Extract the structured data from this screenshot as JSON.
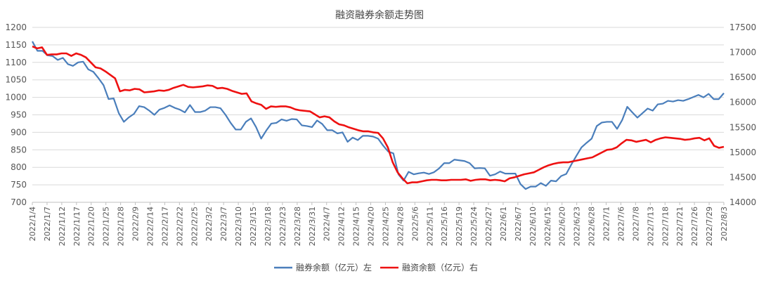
{
  "chart_data": {
    "type": "line",
    "title": "融资融券余额走势图",
    "grid": "horizontal",
    "legend_position": "bottom-center",
    "left_axis": {
      "ylim": [
        700,
        1200
      ],
      "ticks": [
        700,
        750,
        800,
        850,
        900,
        950,
        1000,
        1050,
        1100,
        1150,
        1200
      ]
    },
    "right_axis": {
      "ylim": [
        14000,
        17500
      ],
      "ticks": [
        14000,
        14500,
        15000,
        15500,
        16000,
        16500,
        17000,
        17500
      ]
    },
    "x_tick_labels": [
      "2022/1/4",
      "2022/1/7",
      "2022/1/12",
      "2022/1/17",
      "2022/1/20",
      "2022/1/25",
      "2022/1/28",
      "2022/2/9",
      "2022/2/14",
      "2022/2/17",
      "2022/2/22",
      "2022/2/25",
      "2022/3/2",
      "2022/3/7",
      "2022/3/10",
      "2022/3/15",
      "2022/3/18",
      "2022/3/23",
      "2022/3/28",
      "2022/3/31",
      "2022/4/7",
      "2022/4/12",
      "2022/4/15",
      "2022/4/20",
      "2022/4/25",
      "2022/4/28",
      "2022/5/6",
      "2022/5/11",
      "2022/5/16",
      "2022/5/19",
      "2022/5/24",
      "2022/5/27",
      "2022/6/1",
      "2022/6/7",
      "2022/6/10",
      "2022/6/15",
      "2022/6/20",
      "2022/6/23",
      "2022/6/28",
      "2022/7/1",
      "2022/7/6",
      "2022/7/8",
      "2022/7/13",
      "2022/7/18",
      "2022/7/21",
      "2022/7/26",
      "2022/7/29",
      "2022/8/3"
    ],
    "series": [
      {
        "name": "融券余额（亿元）左",
        "axis": "left",
        "color": "#4a7ebb",
        "values": [
          1160,
          1133,
          1133,
          1120,
          1118,
          1107,
          1113,
          1095,
          1090,
          1100,
          1102,
          1080,
          1073,
          1055,
          1035,
          995,
          997,
          955,
          930,
          943,
          953,
          975,
          972,
          962,
          950,
          965,
          970,
          977,
          970,
          965,
          957,
          978,
          958,
          958,
          962,
          972,
          972,
          969,
          950,
          927,
          908,
          908,
          930,
          940,
          915,
          882,
          905,
          925,
          927,
          937,
          933,
          938,
          937,
          920,
          918,
          915,
          934,
          924,
          906,
          906,
          897,
          900,
          873,
          885,
          878,
          890,
          890,
          888,
          882,
          862,
          845,
          840,
          780,
          762,
          787,
          780,
          783,
          785,
          781,
          786,
          797,
          812,
          812,
          822,
          820,
          818,
          812,
          797,
          798,
          797,
          776,
          780,
          788,
          782,
          782,
          782,
          752,
          738,
          745,
          745,
          755,
          747,
          762,
          760,
          775,
          781,
          808,
          833,
          857,
          870,
          882,
          918,
          928,
          930,
          930,
          910,
          935,
          973,
          957,
          942,
          955,
          968,
          962,
          980,
          982,
          990,
          988,
          992,
          990,
          995,
          1001,
          1007,
          1000,
          1010,
          995,
          995,
          1012
        ]
      },
      {
        "name": "融资余额（亿元）右",
        "axis": "right",
        "color": "#ee1111",
        "values": [
          17120,
          17080,
          17100,
          16950,
          16960,
          16960,
          16980,
          16980,
          16930,
          16980,
          16950,
          16900,
          16800,
          16700,
          16680,
          16620,
          16550,
          16480,
          16220,
          16250,
          16240,
          16270,
          16260,
          16200,
          16210,
          16220,
          16240,
          16230,
          16250,
          16290,
          16320,
          16350,
          16310,
          16300,
          16310,
          16320,
          16340,
          16330,
          16280,
          16290,
          16270,
          16230,
          16200,
          16170,
          16180,
          16020,
          15980,
          15950,
          15870,
          15920,
          15910,
          15920,
          15920,
          15900,
          15860,
          15840,
          15830,
          15820,
          15760,
          15700,
          15720,
          15700,
          15620,
          15560,
          15540,
          15500,
          15470,
          15440,
          15420,
          15420,
          15400,
          15390,
          15280,
          15100,
          14800,
          14600,
          14480,
          14380,
          14400,
          14400,
          14420,
          14440,
          14450,
          14450,
          14440,
          14440,
          14450,
          14450,
          14450,
          14460,
          14430,
          14450,
          14460,
          14460,
          14440,
          14450,
          14440,
          14420,
          14480,
          14500,
          14530,
          14560,
          14580,
          14600,
          14650,
          14700,
          14740,
          14770,
          14790,
          14800,
          14800,
          14820,
          14840,
          14860,
          14880,
          14900,
          14950,
          15000,
          15050,
          15060,
          15100,
          15180,
          15250,
          15240,
          15210,
          15230,
          15250,
          15200,
          15250,
          15280,
          15300,
          15290,
          15280,
          15270,
          15250,
          15260,
          15280,
          15290,
          15240,
          15280,
          15130,
          15090,
          15110
        ]
      }
    ]
  }
}
